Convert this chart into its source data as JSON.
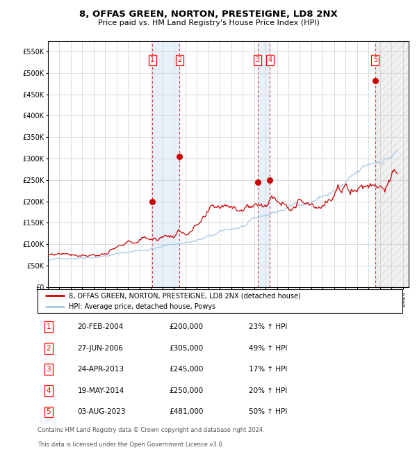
{
  "title": "8, OFFAS GREEN, NORTON, PRESTEIGNE, LD8 2NX",
  "subtitle": "Price paid vs. HM Land Registry's House Price Index (HPI)",
  "ylim": [
    0,
    575000
  ],
  "yticks": [
    0,
    50000,
    100000,
    150000,
    200000,
    250000,
    300000,
    350000,
    400000,
    450000,
    500000,
    550000
  ],
  "ytick_labels": [
    "£0",
    "£50K",
    "£100K",
    "£150K",
    "£200K",
    "£250K",
    "£300K",
    "£350K",
    "£400K",
    "£450K",
    "£500K",
    "£550K"
  ],
  "xlim_start": 1995.0,
  "xlim_end": 2026.5,
  "hpi_color": "#a8c8e8",
  "price_color": "#cc0000",
  "background_color": "#ffffff",
  "grid_color": "#cccccc",
  "transactions": [
    {
      "num": 1,
      "date": "20-FEB-2004",
      "year": 2004.13,
      "price": 200000,
      "pct": "23%",
      "label": "1"
    },
    {
      "num": 2,
      "date": "27-JUN-2006",
      "year": 2006.49,
      "price": 305000,
      "pct": "49%",
      "label": "2"
    },
    {
      "num": 3,
      "date": "24-APR-2013",
      "year": 2013.31,
      "price": 245000,
      "pct": "17%",
      "label": "3"
    },
    {
      "num": 4,
      "date": "19-MAY-2014",
      "year": 2014.38,
      "price": 250000,
      "pct": "20%",
      "label": "4"
    },
    {
      "num": 5,
      "date": "03-AUG-2023",
      "year": 2023.58,
      "price": 481000,
      "pct": "50%",
      "label": "5"
    }
  ],
  "legend_line1": "8, OFFAS GREEN, NORTON, PRESTEIGNE, LD8 2NX (detached house)",
  "legend_line2": "HPI: Average price, detached house, Powys",
  "footer1": "Contains HM Land Registry data © Crown copyright and database right 2024.",
  "footer2": "This data is licensed under the Open Government Licence v3.0.",
  "table_rows": [
    [
      "1",
      "20-FEB-2004",
      "£200,000",
      "23% ↑ HPI"
    ],
    [
      "2",
      "27-JUN-2006",
      "£305,000",
      "49% ↑ HPI"
    ],
    [
      "3",
      "24-APR-2013",
      "£245,000",
      "17% ↑ HPI"
    ],
    [
      "4",
      "19-MAY-2014",
      "£250,000",
      "20% ↑ HPI"
    ],
    [
      "5",
      "03-AUG-2023",
      "£481,000",
      "50% ↑ HPI"
    ]
  ]
}
